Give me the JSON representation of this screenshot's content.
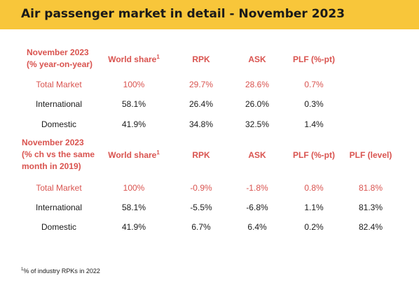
{
  "title": "Air passenger market in detail - November 2023",
  "table1": {
    "header": {
      "label_line1": "November 2023",
      "label_line2": "(% year-on-year)",
      "world_share": "World share",
      "world_share_sup": "1",
      "rpk": "RPK",
      "ask": "ASK",
      "plf": "PLF (%-pt)"
    },
    "rows": [
      {
        "name": "Total Market",
        "world_share": "100%",
        "rpk": "29.7%",
        "ask": "28.6%",
        "plf": "0.7%"
      },
      {
        "name": "International",
        "world_share": "58.1%",
        "rpk": "26.4%",
        "ask": "26.0%",
        "plf": "0.3%"
      },
      {
        "name": "Domestic",
        "world_share": "41.9%",
        "rpk": "34.8%",
        "ask": "32.5%",
        "plf": "1.4%"
      }
    ]
  },
  "table2": {
    "header": {
      "label_line1": "November 2023",
      "label_line2": "(% ch vs the same",
      "label_line3": "month in 2019)",
      "world_share": "World share",
      "world_share_sup": "1",
      "rpk": "RPK",
      "ask": "ASK",
      "plf": "PLF (%-pt)",
      "plf_level": "PLF (level)"
    },
    "rows": [
      {
        "name": "Total Market",
        "world_share": "100%",
        "rpk": "-0.9%",
        "ask": "-1.8%",
        "plf": "0.8%",
        "plf_level": "81.8%"
      },
      {
        "name": "International",
        "world_share": "58.1%",
        "rpk": "-5.5%",
        "ask": "-6.8%",
        "plf": "1.1%",
        "plf_level": "81.3%"
      },
      {
        "name": "Domestic",
        "world_share": "41.9%",
        "rpk": "6.7%",
        "ask": "6.4%",
        "plf": "0.2%",
        "plf_level": "82.4%"
      }
    ]
  },
  "footnote": {
    "sup": "1",
    "text": "% of industry RPKs in 2022"
  },
  "colors": {
    "header_bg": "#f8c63a",
    "accent_red": "#d9534f"
  }
}
